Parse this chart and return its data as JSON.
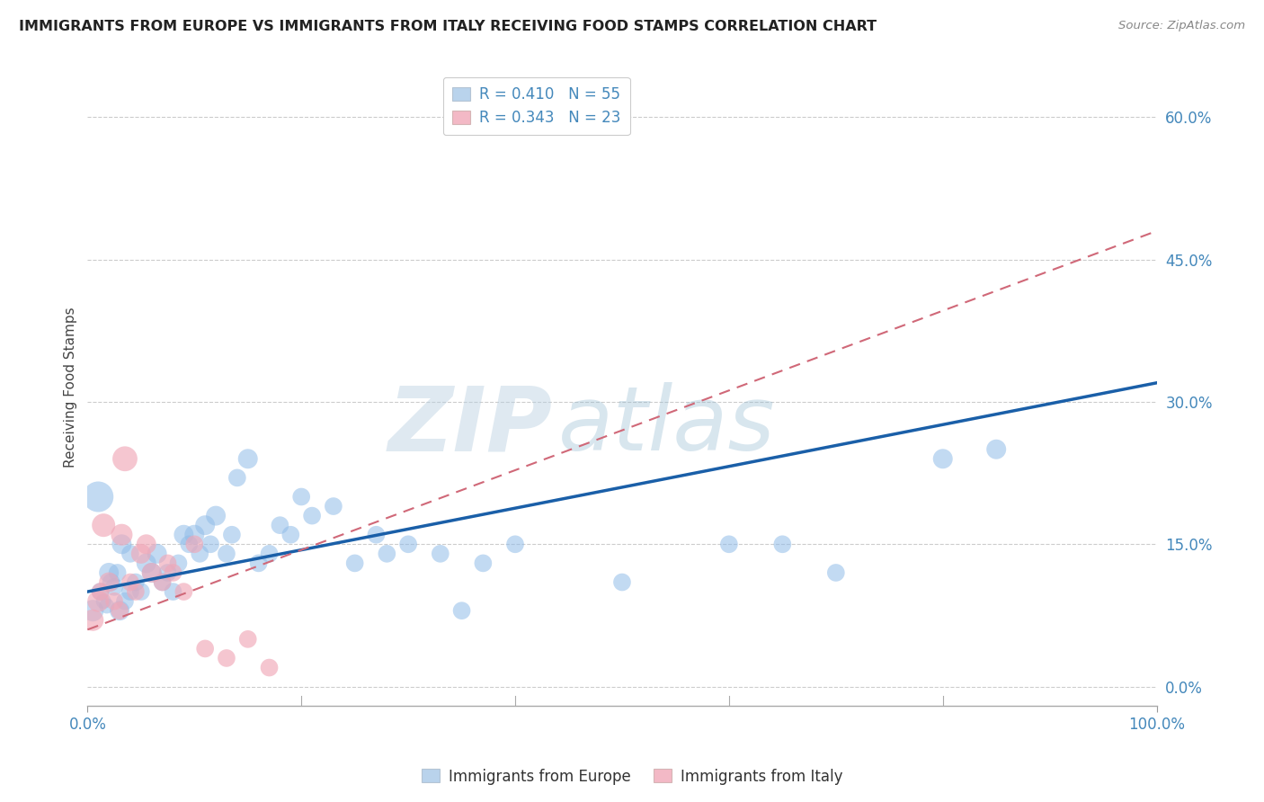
{
  "title": "IMMIGRANTS FROM EUROPE VS IMMIGRANTS FROM ITALY RECEIVING FOOD STAMPS CORRELATION CHART",
  "source": "Source: ZipAtlas.com",
  "ylabel": "Receiving Food Stamps",
  "xlim": [
    0,
    100
  ],
  "ylim": [
    -2,
    65
  ],
  "yticks": [
    0,
    15,
    30,
    45,
    60
  ],
  "ytick_labels": [
    "0.0%",
    "15.0%",
    "30.0%",
    "45.0%",
    "60.0%"
  ],
  "xtick_labels": [
    "0.0%",
    "100.0%"
  ],
  "legend1_label": "R = 0.410   N = 55",
  "legend2_label": "R = 0.343   N = 23",
  "legend_color1": "#a8c8e8",
  "legend_color2": "#f0a8b8",
  "watermark_left": "ZIP",
  "watermark_right": "atlas",
  "blue_color": "#90bce8",
  "pink_color": "#f0a8b8",
  "blue_line_color": "#1a5fa8",
  "pink_line_color": "#d06878",
  "background_color": "#ffffff",
  "grid_color": "#cccccc",
  "blue_line_x0": 0,
  "blue_line_y0": 10.0,
  "blue_line_x1": 100,
  "blue_line_y1": 32.0,
  "pink_line_x0": 0,
  "pink_line_y0": 6.0,
  "pink_line_x1": 100,
  "pink_line_y1": 48.0,
  "europe_x": [
    0.5,
    1.0,
    1.2,
    1.5,
    1.8,
    2.0,
    2.2,
    2.5,
    2.8,
    3.0,
    3.2,
    3.5,
    4.0,
    4.0,
    4.5,
    5.0,
    5.5,
    6.0,
    6.5,
    7.0,
    7.5,
    8.0,
    8.5,
    9.0,
    9.5,
    10.0,
    10.5,
    11.0,
    11.5,
    12.0,
    13.0,
    13.5,
    14.0,
    15.0,
    16.0,
    17.0,
    18.0,
    19.0,
    20.0,
    21.0,
    23.0,
    25.0,
    27.0,
    30.0,
    33.0,
    37.0,
    40.0,
    50.0,
    60.0,
    65.0,
    70.0,
    80.0,
    85.0,
    28.0,
    35.0
  ],
  "europe_y": [
    8.0,
    20.0,
    10.0,
    9.0,
    8.5,
    12.0,
    11.0,
    10.5,
    12.0,
    8.0,
    15.0,
    9.0,
    10.0,
    14.0,
    11.0,
    10.0,
    13.0,
    12.0,
    14.0,
    11.0,
    12.0,
    10.0,
    13.0,
    16.0,
    15.0,
    16.0,
    14.0,
    17.0,
    15.0,
    18.0,
    14.0,
    16.0,
    22.0,
    24.0,
    13.0,
    14.0,
    17.0,
    16.0,
    20.0,
    18.0,
    19.0,
    13.0,
    16.0,
    15.0,
    14.0,
    13.0,
    15.0,
    11.0,
    15.0,
    15.0,
    12.0,
    24.0,
    25.0,
    14.0,
    8.0
  ],
  "europe_sizes": [
    300,
    600,
    200,
    150,
    150,
    250,
    200,
    200,
    200,
    250,
    250,
    200,
    200,
    200,
    200,
    200,
    250,
    250,
    250,
    200,
    200,
    200,
    200,
    250,
    200,
    250,
    200,
    250,
    200,
    250,
    200,
    200,
    200,
    250,
    200,
    200,
    200,
    200,
    200,
    200,
    200,
    200,
    200,
    200,
    200,
    200,
    200,
    200,
    200,
    200,
    200,
    250,
    250,
    200,
    200
  ],
  "italy_x": [
    0.5,
    1.0,
    1.2,
    1.5,
    2.0,
    2.5,
    3.0,
    3.2,
    3.5,
    4.0,
    4.5,
    5.0,
    5.5,
    6.0,
    7.0,
    7.5,
    8.0,
    9.0,
    10.0,
    11.0,
    13.0,
    15.0,
    17.0
  ],
  "italy_y": [
    7.0,
    9.0,
    10.0,
    17.0,
    11.0,
    9.0,
    8.0,
    16.0,
    24.0,
    11.0,
    10.0,
    14.0,
    15.0,
    12.0,
    11.0,
    13.0,
    12.0,
    10.0,
    15.0,
    4.0,
    3.0,
    5.0,
    2.0
  ],
  "italy_sizes": [
    300,
    300,
    200,
    350,
    250,
    200,
    200,
    300,
    400,
    200,
    200,
    250,
    250,
    250,
    200,
    200,
    200,
    200,
    200,
    200,
    200,
    200,
    200
  ]
}
